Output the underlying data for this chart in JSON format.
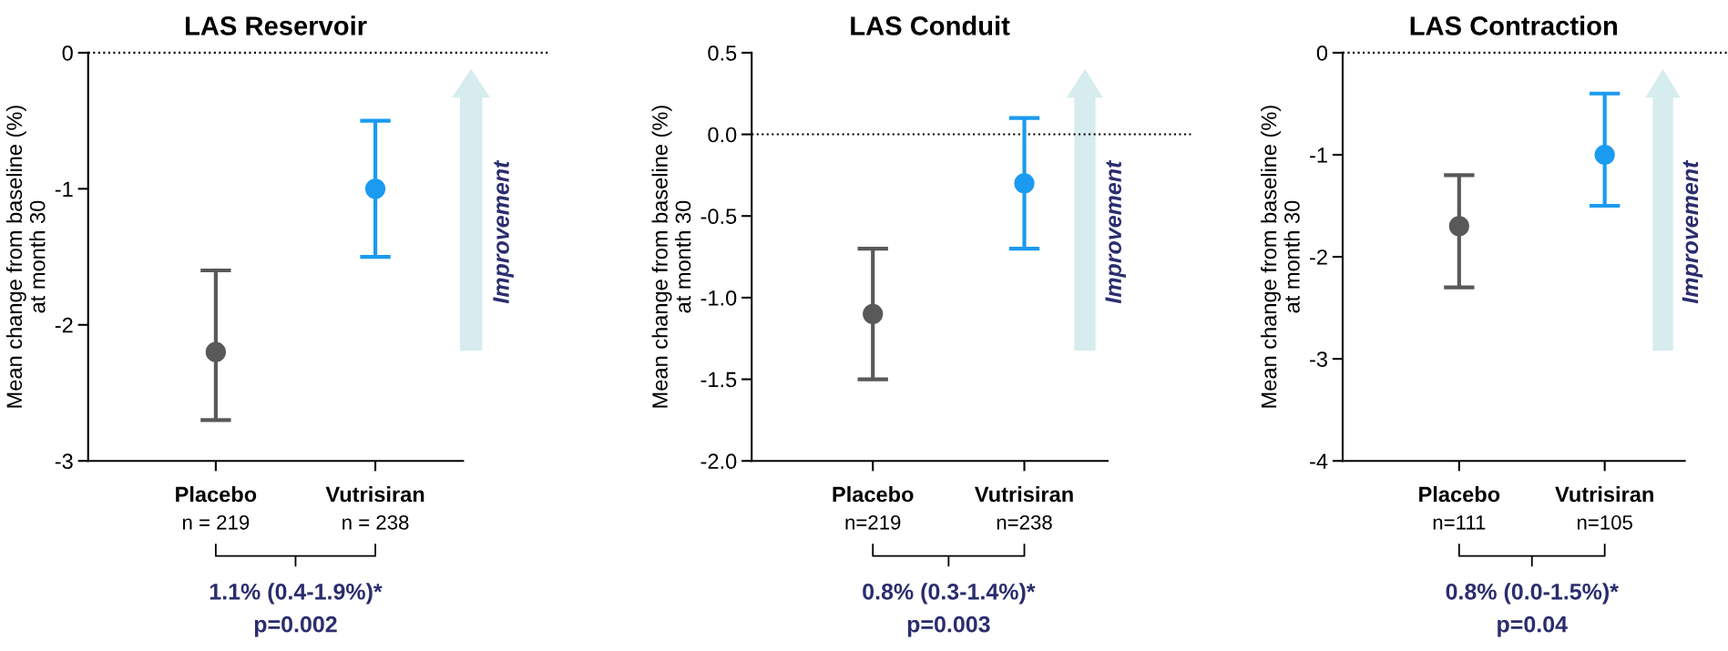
{
  "chart_data": [
    {
      "type": "scatter",
      "title": "LAS Reservoir",
      "ylabel": "Mean change from baseline (%)\nat month 30",
      "categories": [
        "Placebo",
        "Vutrisiran"
      ],
      "values": [
        -2.2,
        -1.0
      ],
      "errors": [
        [
          -2.7,
          -1.6
        ],
        [
          -1.5,
          -0.5
        ]
      ],
      "colors": [
        "#595959",
        "#1a9bf0"
      ],
      "marker": "circle",
      "ylim": [
        -3,
        0
      ],
      "yticks": [
        -3,
        -2,
        -1,
        0
      ],
      "ref_lines": [
        {
          "axis": "y",
          "value": 0,
          "line_style": "dotted",
          "color": "#000000"
        }
      ],
      "annotations": [
        "n = 219",
        "n = 238",
        "1.1% (0.4-1.9%)*",
        "p=0.002",
        "Improvement"
      ],
      "grid": false
    },
    {
      "type": "scatter",
      "title": "LAS Conduit",
      "ylabel": "Mean change from baseline (%)\nat month 30",
      "categories": [
        "Placebo",
        "Vutrisiran"
      ],
      "values": [
        -1.1,
        -0.3
      ],
      "errors": [
        [
          -1.5,
          -0.7
        ],
        [
          -0.7,
          0.1
        ]
      ],
      "colors": [
        "#595959",
        "#1a9bf0"
      ],
      "marker": "circle",
      "ylim": [
        -2.0,
        0.5
      ],
      "yticks": [
        {
          "value": -2.0,
          "label": "-2.0"
        },
        -1.5,
        {
          "value": -1.0,
          "label": "-1.0"
        },
        -0.5,
        {
          "value": 0,
          "label": "0.0"
        },
        0.5
      ],
      "ref_lines": [
        {
          "axis": "y",
          "value": 0,
          "line_style": "dotted",
          "color": "#000000"
        }
      ],
      "annotations": [
        "n=219",
        "n=238",
        "0.8% (0.3-1.4%)*",
        "p=0.003",
        "Improvement"
      ],
      "grid": false
    },
    {
      "type": "scatter",
      "title": "LAS Contraction",
      "ylabel": "Mean change from baseline (%)\nat month 30",
      "categories": [
        "Placebo",
        "Vutrisiran"
      ],
      "values": [
        -1.7,
        -1.0
      ],
      "errors": [
        [
          -2.3,
          -1.2
        ],
        [
          -1.5,
          -0.4
        ]
      ],
      "colors": [
        "#595959",
        "#1a9bf0"
      ],
      "marker": "circle",
      "ylim": [
        -4,
        0
      ],
      "yticks": [
        -4,
        -3,
        -2,
        -1,
        0
      ],
      "ref_lines": [
        {
          "axis": "y",
          "value": 0,
          "line_style": "dotted",
          "color": "#000000"
        }
      ],
      "annotations": [
        "n=111",
        "n=105",
        "0.8% (0.0-1.5%)*",
        "p=0.04",
        "Improvement"
      ],
      "grid": false
    }
  ]
}
